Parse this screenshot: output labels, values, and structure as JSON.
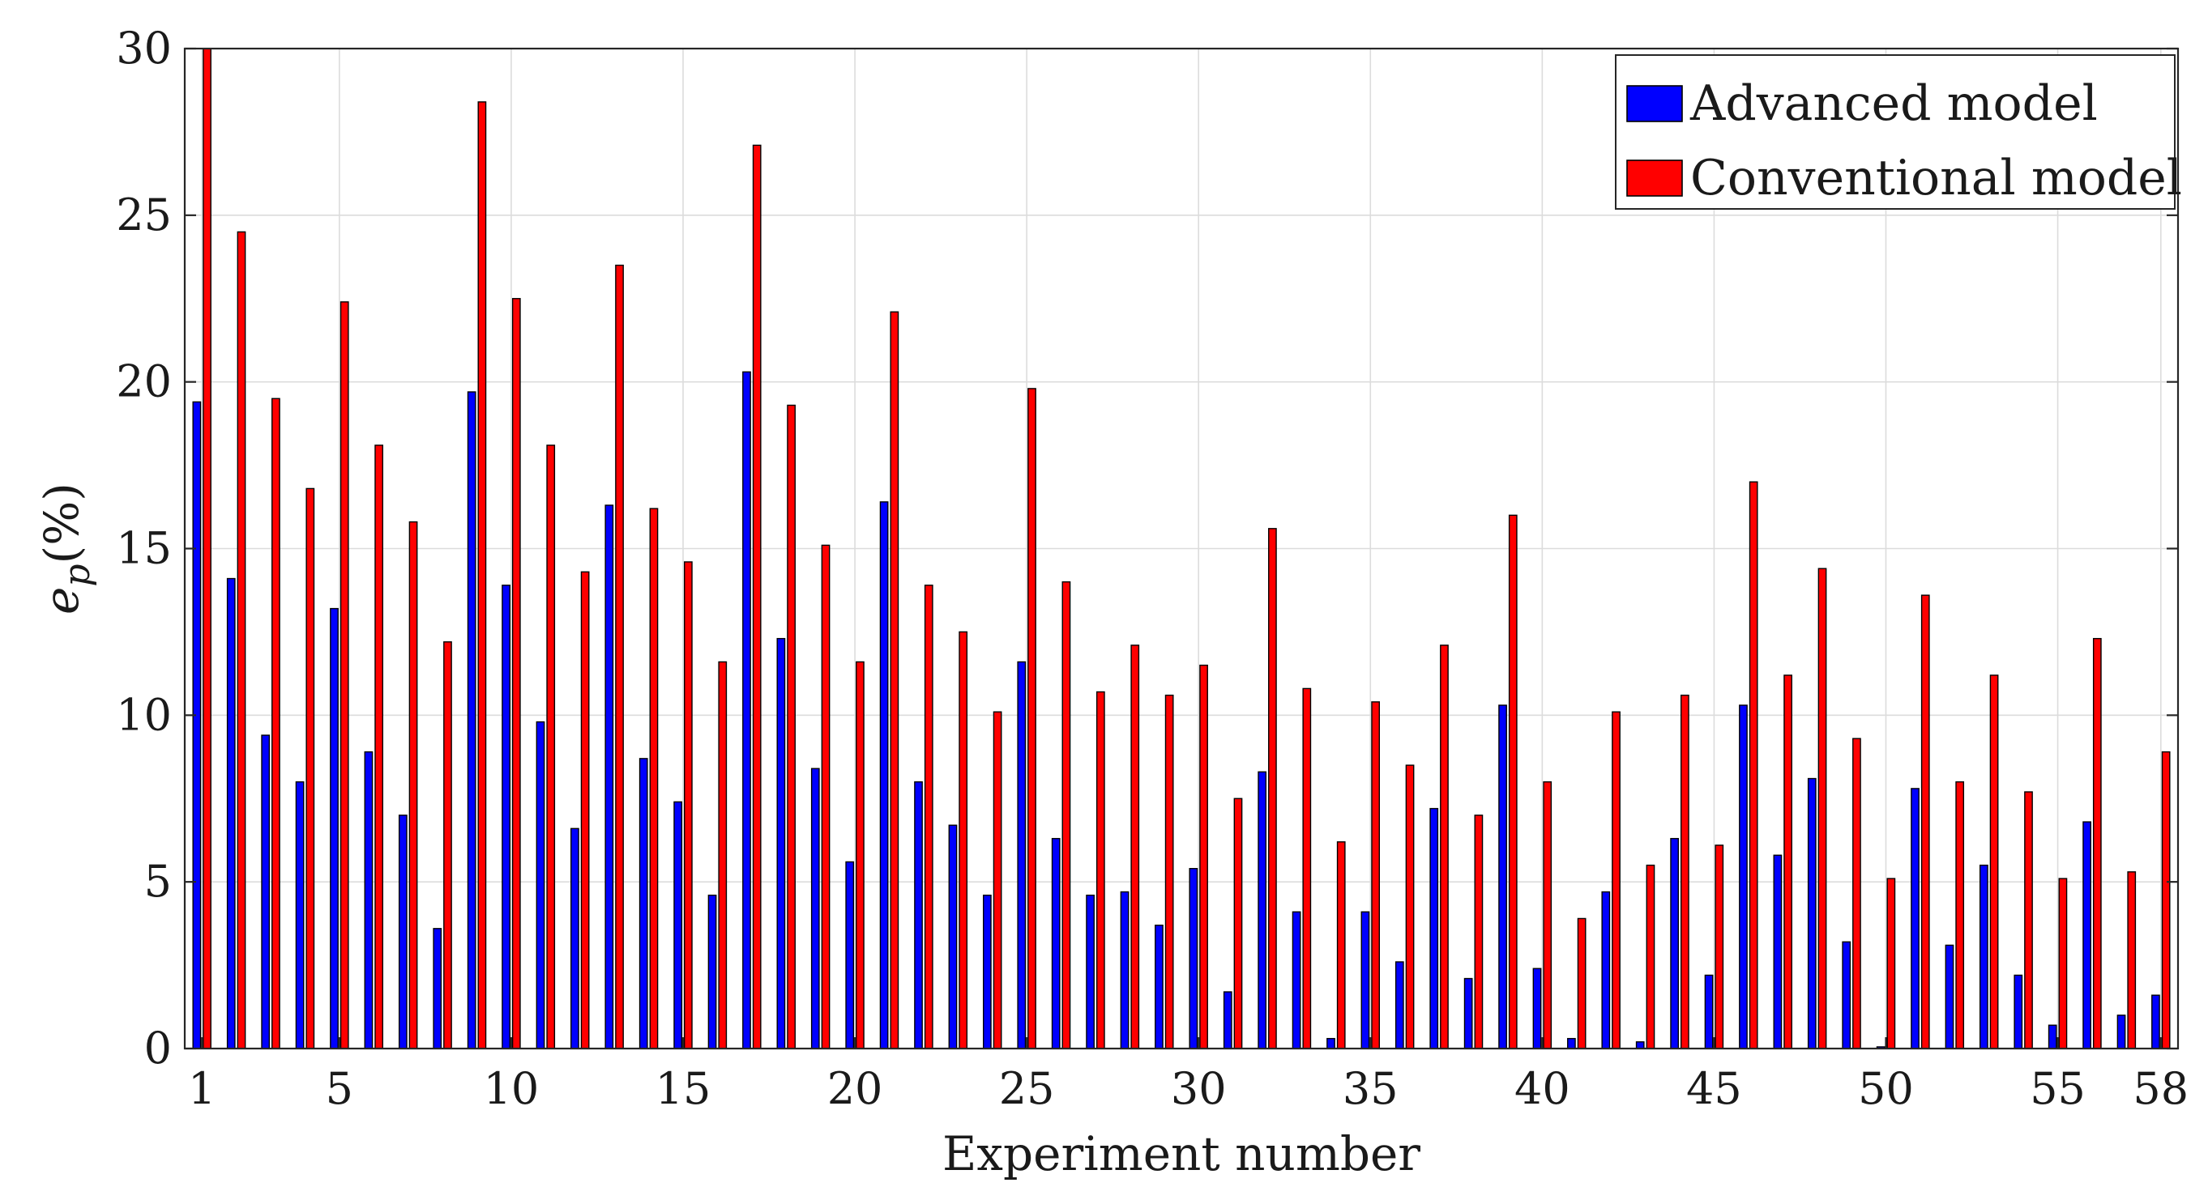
{
  "chart_data": {
    "type": "bar",
    "xlabel": "Experiment number",
    "ylabel": {
      "base": "e",
      "subscript": "p",
      "suffix": "(%)"
    },
    "ylim": [
      0,
      30
    ],
    "xlim": [
      1,
      58
    ],
    "yticks": [
      0,
      5,
      10,
      15,
      20,
      25,
      30
    ],
    "xticks": [
      1,
      5,
      10,
      15,
      20,
      25,
      30,
      35,
      40,
      45,
      50,
      55,
      58
    ],
    "grid": true,
    "legend_position": "top-right",
    "categories": [
      1,
      2,
      3,
      4,
      5,
      6,
      7,
      8,
      9,
      10,
      11,
      12,
      13,
      14,
      15,
      16,
      17,
      18,
      19,
      20,
      21,
      22,
      23,
      24,
      25,
      26,
      27,
      28,
      29,
      30,
      31,
      32,
      33,
      34,
      35,
      36,
      37,
      38,
      39,
      40,
      41,
      42,
      43,
      44,
      45,
      46,
      47,
      48,
      49,
      50,
      51,
      52,
      53,
      54,
      55,
      56,
      57,
      58
    ],
    "series": [
      {
        "name": "Advanced model",
        "color": "#0000ff",
        "values": [
          19.4,
          14.1,
          9.4,
          8.0,
          13.2,
          8.9,
          7.0,
          3.6,
          19.7,
          13.9,
          9.8,
          6.6,
          16.3,
          8.7,
          7.4,
          4.6,
          20.3,
          12.3,
          8.4,
          5.6,
          16.4,
          8.0,
          6.7,
          4.6,
          11.6,
          6.3,
          4.6,
          4.7,
          3.7,
          5.4,
          1.7,
          8.3,
          4.1,
          0.3,
          4.1,
          2.6,
          7.2,
          2.1,
          10.3,
          2.4,
          0.3,
          4.7,
          0.2,
          6.3,
          2.2,
          10.3,
          5.8,
          8.1,
          3.2,
          0.05,
          7.8,
          3.1,
          5.5,
          2.2,
          0.7,
          6.8,
          1.0,
          1.6
        ]
      },
      {
        "name": "Conventional model",
        "color": "#ff0000",
        "values": [
          30.0,
          24.5,
          19.5,
          16.8,
          22.4,
          18.1,
          15.8,
          12.2,
          28.4,
          22.5,
          18.1,
          14.3,
          23.5,
          16.2,
          14.6,
          11.6,
          27.1,
          19.3,
          15.1,
          11.6,
          22.1,
          13.9,
          12.5,
          10.1,
          19.8,
          14.0,
          10.7,
          12.1,
          10.6,
          11.5,
          7.5,
          15.6,
          10.8,
          6.2,
          10.4,
          8.5,
          12.1,
          7.0,
          16.0,
          8.0,
          3.9,
          10.1,
          5.5,
          10.6,
          6.1,
          17.0,
          11.2,
          14.4,
          9.3,
          5.1,
          13.6,
          8.0,
          11.2,
          7.7,
          5.1,
          12.3,
          5.3,
          8.9
        ]
      }
    ]
  }
}
